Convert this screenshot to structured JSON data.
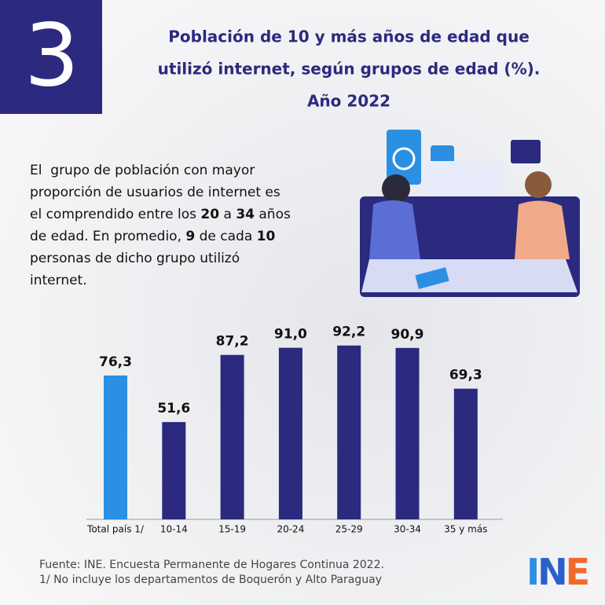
{
  "badge": "3",
  "title_lines": [
    "Población de 10 y más años de edad que",
    "utilizó internet, según grupos de edad (%).",
    "Año 2022"
  ],
  "intro": [
    [
      "El  grupo de población con mayor"
    ],
    [
      "proporción de usuarios de internet es"
    ],
    [
      "el comprendido entre los ",
      {
        "text": "20",
        "bold": true
      },
      " a ",
      {
        "text": "34",
        "bold": true
      },
      " años"
    ],
    [
      "de edad. En promedio, ",
      {
        "text": "9",
        "bold": true
      },
      " de cada ",
      {
        "text": "10",
        "bold": true
      }
    ],
    [
      "personas de dicho grupo utilizó"
    ],
    [
      "internet."
    ]
  ],
  "chart_data": {
    "type": "bar",
    "categories": [
      "Total país 1/",
      "10-14",
      "15-19",
      "20-24",
      "25-29",
      "30-34",
      "35 y más"
    ],
    "values": [
      76.3,
      51.6,
      87.2,
      91.0,
      92.2,
      90.9,
      69.3
    ],
    "value_labels": [
      "76,3",
      "51,6",
      "87,2",
      "91,0",
      "92,2",
      "90,9",
      "69,3"
    ],
    "colors": [
      "#2b8fe3",
      "#2b2a7e",
      "#2b2a7e",
      "#2b2a7e",
      "#2b2a7e",
      "#2b2a7e",
      "#2b2a7e"
    ]
  },
  "source_lines": [
    "Fuente: INE. Encuesta Permanente de Hogares Continua 2022.",
    "1/ No incluye los departamentos de Boquerón y Alto Paraguay"
  ],
  "logo": "INE"
}
